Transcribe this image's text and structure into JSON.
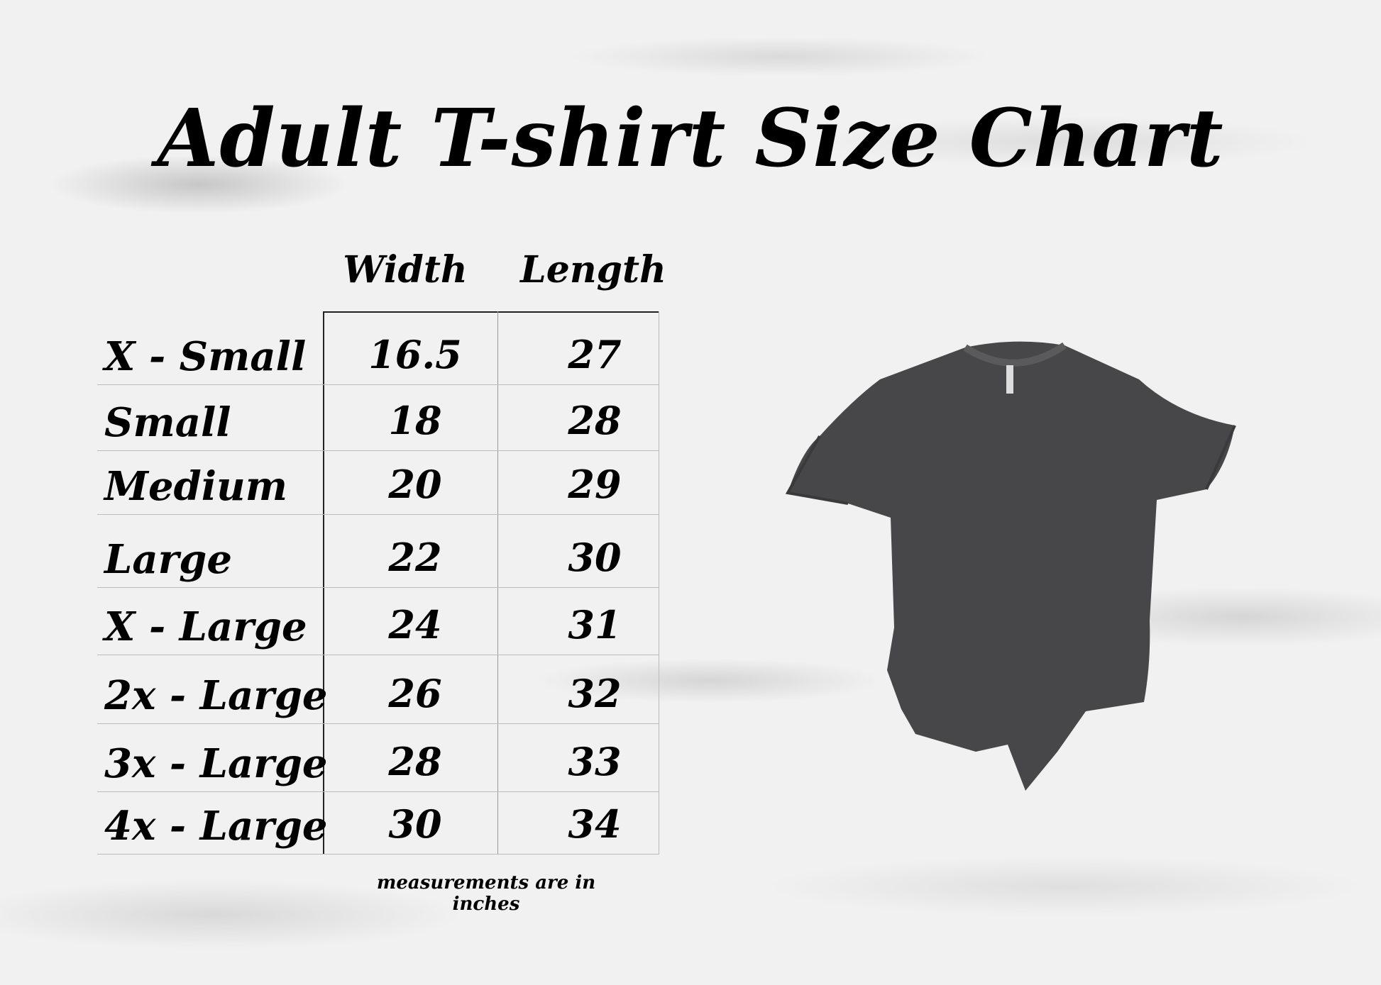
{
  "title": "Adult T-shirt Size Chart",
  "chart_data": {
    "type": "table",
    "columns": [
      "Width",
      "Length"
    ],
    "rows": [
      {
        "size": "X - Small",
        "width": "16.5",
        "length": "27"
      },
      {
        "size": "Small",
        "width": "18",
        "length": "28"
      },
      {
        "size": "Medium",
        "width": "20",
        "length": "29"
      },
      {
        "size": "Large",
        "width": "22",
        "length": "30"
      },
      {
        "size": "X - Large",
        "width": "24",
        "length": "31"
      },
      {
        "size": "2x - Large",
        "width": "26",
        "length": "32"
      },
      {
        "size": "3x - Large",
        "width": "28",
        "length": "33"
      },
      {
        "size": "4x - Large",
        "width": "30",
        "length": "34"
      }
    ]
  },
  "note": "measurements are in inches",
  "colors": {
    "shirt": "#47474a",
    "background": "#f1f1f1"
  },
  "image": {
    "icon": "t-shirt-icon"
  }
}
